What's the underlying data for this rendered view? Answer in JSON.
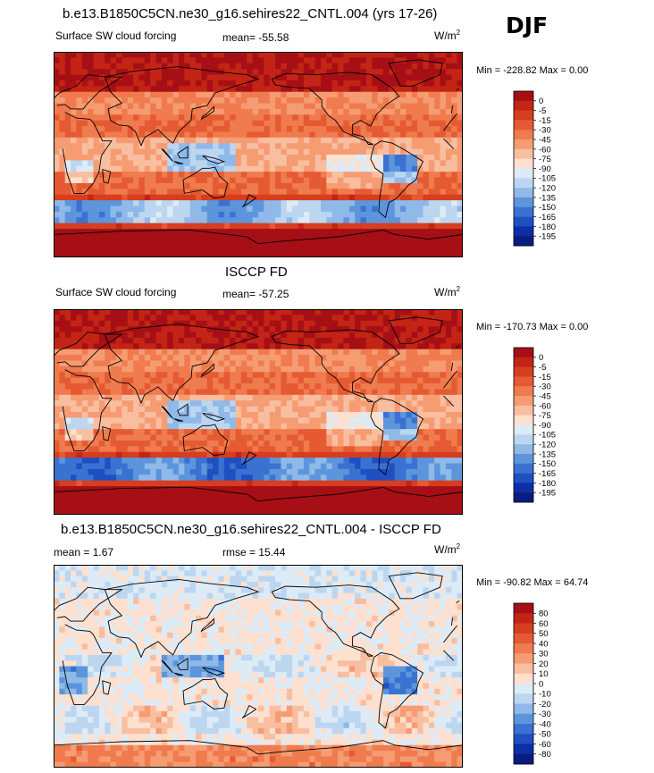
{
  "season": "DJF",
  "colors": {
    "frame": "#000000",
    "coast": "#000000",
    "abs_scale": [
      "#a50f15",
      "#c42415",
      "#d73d1f",
      "#e55a32",
      "#ef7b4e",
      "#f59c73",
      "#f9bea0",
      "#fde0cf",
      "#ddebf7",
      "#bcd6f0",
      "#8fb9e8",
      "#5d95dc",
      "#3a72d2",
      "#1f4fc0",
      "#0d2ea6",
      "#0a1c80"
    ],
    "diff_scale": [
      "#a50f15",
      "#c42415",
      "#d73d1f",
      "#e55a32",
      "#ef7b4e",
      "#f59c73",
      "#f9bea0",
      "#fde0cf",
      "#ddebf7",
      "#bcd6f0",
      "#8fb9e8",
      "#5d95dc",
      "#3a72d2",
      "#1f4fc0",
      "#0d2ea6",
      "#0a1c80"
    ]
  },
  "chart_data": [
    {
      "type": "heatmap",
      "title": "b.e13.B1850C5CN.ne30_g16.sehires22_CNTL.004 (yrs 17-26)",
      "variable": "Surface SW cloud forcing",
      "stat_text": "mean= -55.58",
      "units_base": "W/m",
      "units_exp": "2",
      "minmax": "Min = -228.82 Max =   0.00",
      "colorbar_levels": [
        "0",
        "-5",
        "-15",
        "-30",
        "-45",
        "-60",
        "-75",
        "-90",
        "-105",
        "-120",
        "-135",
        "-150",
        "-165",
        "-180",
        "-195"
      ]
    },
    {
      "type": "heatmap",
      "title": "ISCCP FD",
      "variable": "Surface SW cloud forcing",
      "stat_text": "mean= -57.25",
      "units_base": "W/m",
      "units_exp": "2",
      "minmax": "Min = -170.73 Max =   0.00",
      "colorbar_levels": [
        "0",
        "-5",
        "-15",
        "-30",
        "-45",
        "-60",
        "-75",
        "-90",
        "-105",
        "-120",
        "-135",
        "-150",
        "-165",
        "-180",
        "-195"
      ]
    },
    {
      "type": "heatmap",
      "title": "b.e13.B1850C5CN.ne30_g16.sehires22_CNTL.004 - ISCCP FD",
      "stat_left": "mean =   1.67",
      "stat_mid": "rmse =  15.44",
      "units_base": "W/m",
      "units_exp": "2",
      "minmax": "Min = -90.82 Max =  64.74",
      "colorbar_levels": [
        "80",
        "60",
        "50",
        "40",
        "30",
        "20",
        "10",
        "0",
        "-10",
        "-20",
        "-30",
        "-40",
        "-50",
        "-60",
        "-80"
      ]
    }
  ]
}
